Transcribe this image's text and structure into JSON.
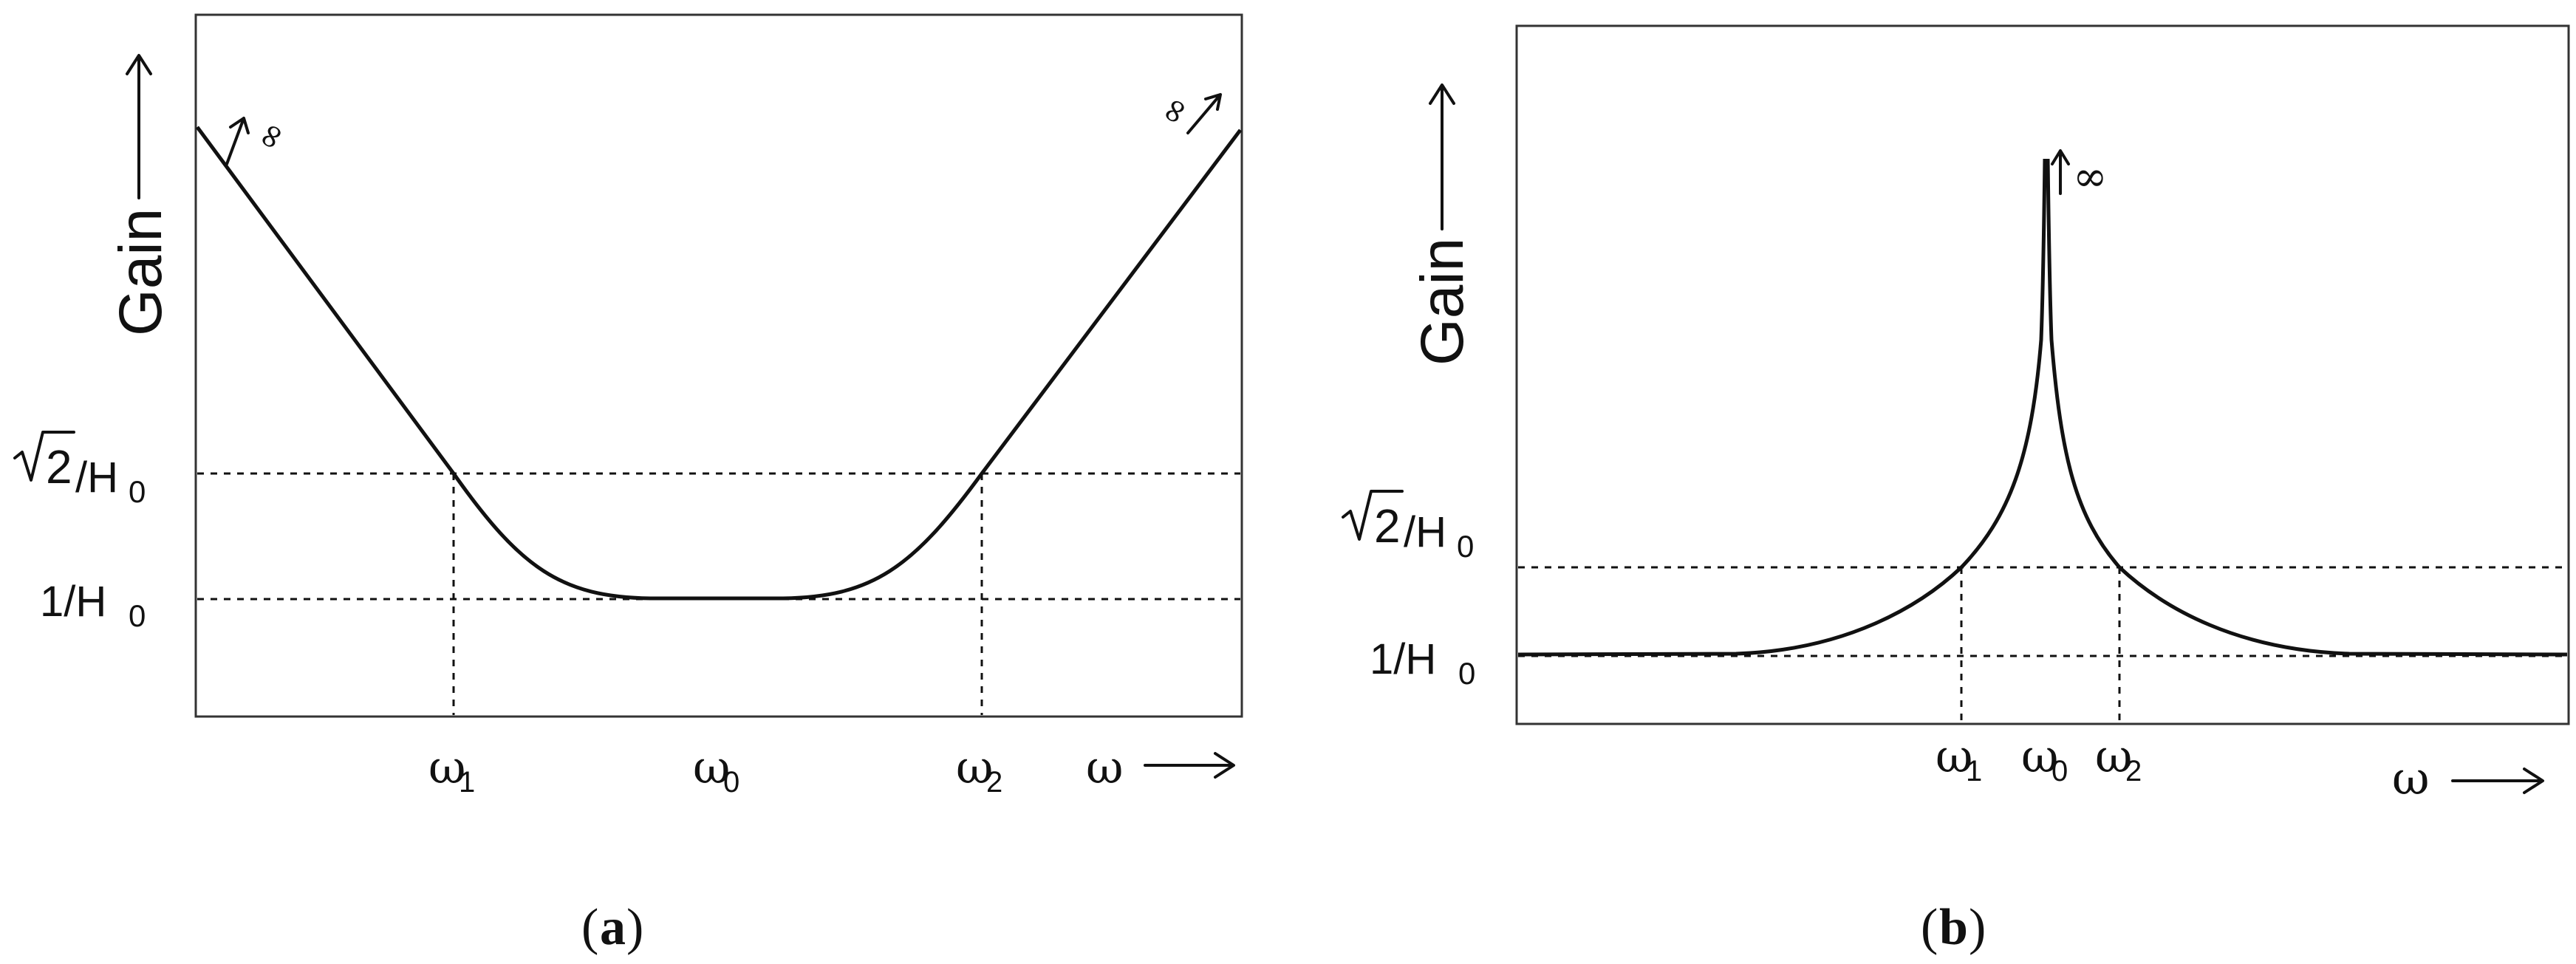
{
  "panel_a": {
    "caption_open": "(",
    "caption_letter": "a",
    "caption_close": ")",
    "y_axis_label": "Gain",
    "x_axis_symbol": "ω",
    "level_upper": {
      "sqrt_radicand": "2",
      "rest": "/H",
      "sub": "0"
    },
    "level_lower": {
      "main": "1/H",
      "sub": "0"
    },
    "x_marks": [
      {
        "main": "ω",
        "sub": "1"
      },
      {
        "main": "ω",
        "sub": "0"
      },
      {
        "main": "ω",
        "sub": "2"
      }
    ],
    "infinity_symbol": "∞"
  },
  "panel_b": {
    "caption_open": "(",
    "caption_letter": "b",
    "caption_close": ")",
    "y_axis_label": "Gain",
    "x_axis_symbol": "ω",
    "level_upper": {
      "sqrt_radicand": "2",
      "rest": "/H",
      "sub": "0"
    },
    "level_lower": {
      "main": "1/H",
      "sub": "0"
    },
    "x_marks": [
      {
        "main": "ω",
        "sub": "1"
      },
      {
        "main": "ω",
        "sub": "0"
      },
      {
        "main": "ω",
        "sub": "2"
      }
    ],
    "infinity_symbol": "∞"
  }
}
